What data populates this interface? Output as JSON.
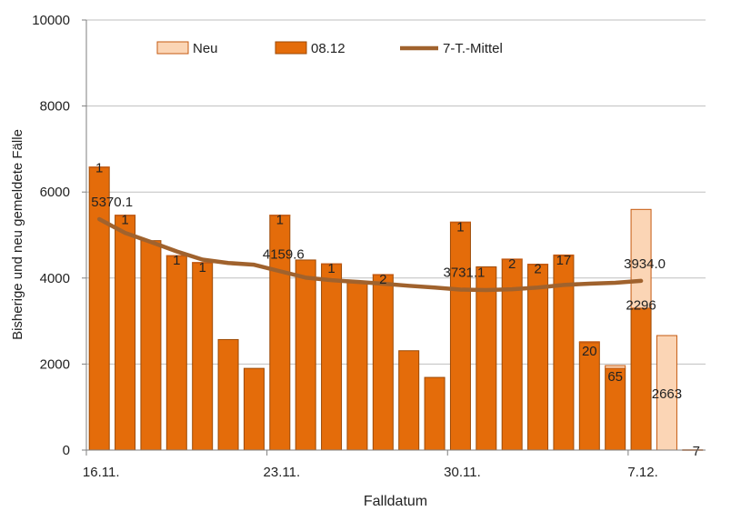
{
  "chart_data": {
    "type": "bar",
    "xlabel": "Falldatum",
    "ylabel": "Bisherige und neu gemeldete Fälle",
    "ylim": [
      0,
      10000
    ],
    "yticks": [
      0,
      2000,
      4000,
      6000,
      8000,
      10000
    ],
    "ytick_labels": [
      "0",
      "2000",
      "4000",
      "6000",
      "8000",
      "10000"
    ],
    "xtick_labels": [
      {
        "label": "16.11.",
        "index": 0
      },
      {
        "label": "23.11.",
        "index": 7
      },
      {
        "label": "30.11.",
        "index": 14
      },
      {
        "label": "7.12.",
        "index": 21
      }
    ],
    "grid": "horizontal",
    "legend_position": "top",
    "legend": [
      {
        "label": "Neu",
        "type": "bar",
        "color": "#fbd5b5",
        "stroke": "#c55a11"
      },
      {
        "label": "08.12",
        "type": "bar",
        "color": "#e46c0a",
        "stroke": "#9c4a06"
      },
      {
        "label": "7-T.-Mittel",
        "type": "line",
        "color": "#a0622d"
      }
    ],
    "series": [
      {
        "name": "08.12",
        "color": "#e46c0a",
        "values": [
          6580,
          5460,
          4870,
          4520,
          4360,
          2570,
          1900,
          5460,
          4420,
          4330,
          3920,
          4080,
          2310,
          1690,
          5300,
          4260,
          4440,
          4320,
          4520,
          2500,
          1900,
          3300,
          0,
          0
        ]
      },
      {
        "name": "Neu",
        "color": "#fbd5b5",
        "values": [
          1,
          1,
          0,
          1,
          1,
          0,
          0,
          1,
          0,
          1,
          0,
          2,
          0,
          0,
          1,
          0,
          2,
          2,
          17,
          20,
          65,
          2296,
          2663,
          7
        ]
      }
    ],
    "bar_labels": [
      "1",
      "1",
      "",
      "1",
      "1",
      "",
      "",
      "1",
      "",
      "1",
      "",
      "2",
      "",
      "",
      "1",
      "",
      "2",
      "2",
      "17",
      "20",
      "65",
      "2296",
      "2663",
      "7"
    ],
    "moving_average": {
      "name": "7-T.-Mittel",
      "color": "#a0622d",
      "values": [
        5370.1,
        5050,
        4840,
        4620,
        4430,
        4350,
        4310,
        4159.6,
        4010,
        3950,
        3910,
        3870,
        3820,
        3780,
        3731.1,
        3720,
        3740,
        3780,
        3840,
        3870,
        3890,
        3934.0,
        null,
        null
      ]
    },
    "avg_labels": [
      {
        "index": 0,
        "text": "5370.1"
      },
      {
        "index": 7,
        "text": "4159.6"
      },
      {
        "index": 14,
        "text": "3731.1"
      },
      {
        "index": 21,
        "text": "3934.0"
      }
    ]
  }
}
